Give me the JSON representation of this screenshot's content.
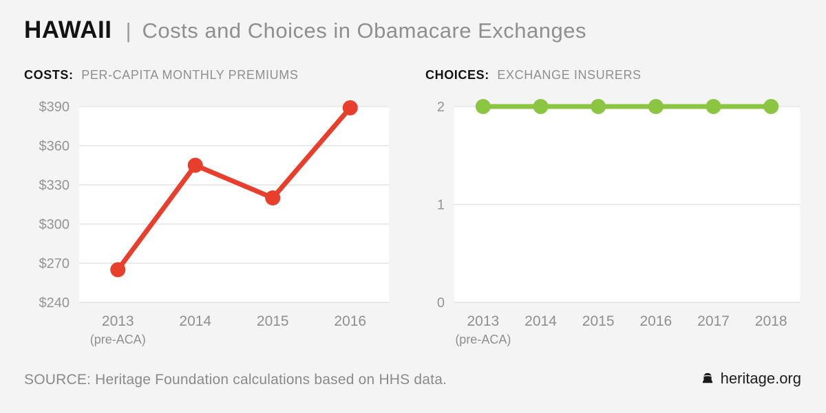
{
  "page": {
    "background": "#f4f4f4"
  },
  "header": {
    "state": "HAWAII",
    "separator": "|",
    "title": "Costs and Choices in Obamacare Exchanges"
  },
  "sections": {
    "costs": {
      "label": "COSTS:",
      "sublabel": "PER-CAPITA MONTHLY PREMIUMS"
    },
    "choices": {
      "label": "CHOICES:",
      "sublabel": "EXCHANGE INSURERS"
    }
  },
  "chart_data": [
    {
      "id": "costs",
      "type": "line",
      "title": "COSTS: PER-CAPITA MONTHLY PREMIUMS",
      "categories": [
        "2013",
        "2014",
        "2015",
        "2016"
      ],
      "category_sublabels": [
        "(pre-ACA)",
        "",
        "",
        ""
      ],
      "values": [
        265,
        345,
        320,
        389
      ],
      "ylim": [
        240,
        390
      ],
      "yticks": [
        240,
        270,
        300,
        330,
        360,
        390
      ],
      "ytick_prefix": "$",
      "color": "#E83E2C",
      "grid": true,
      "legend": "none",
      "plot_background": "#ffffff"
    },
    {
      "id": "choices",
      "type": "line",
      "title": "CHOICES: EXCHANGE INSURERS",
      "categories": [
        "2013",
        "2014",
        "2015",
        "2016",
        "2017",
        "2018"
      ],
      "category_sublabels": [
        "(pre-ACA)",
        "",
        "",
        "",
        "",
        ""
      ],
      "values": [
        2,
        2,
        2,
        2,
        2,
        2
      ],
      "ylim": [
        0,
        2
      ],
      "yticks": [
        0,
        1,
        2
      ],
      "ytick_prefix": "",
      "color": "#8BC541",
      "grid": true,
      "legend": "none",
      "plot_background": "#ffffff"
    }
  ],
  "footer": {
    "source": "SOURCE: Heritage Foundation calculations based on HHS data.",
    "brand": "heritage.org",
    "brand_icon": "liberty-bell-icon"
  }
}
